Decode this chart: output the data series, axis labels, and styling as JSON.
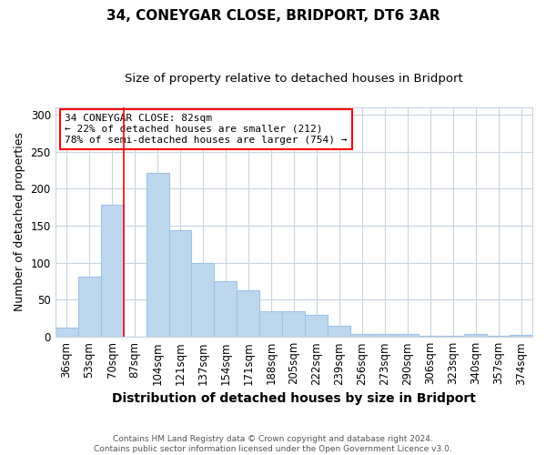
{
  "title1": "34, CONEYGAR CLOSE, BRIDPORT, DT6 3AR",
  "title2": "Size of property relative to detached houses in Bridport",
  "xlabel": "Distribution of detached houses by size in Bridport",
  "ylabel": "Number of detached properties",
  "categories": [
    "36sqm",
    "53sqm",
    "70sqm",
    "87sqm",
    "104sqm",
    "121sqm",
    "137sqm",
    "154sqm",
    "171sqm",
    "188sqm",
    "205sqm",
    "222sqm",
    "239sqm",
    "256sqm",
    "273sqm",
    "290sqm",
    "306sqm",
    "323sqm",
    "340sqm",
    "357sqm",
    "374sqm"
  ],
  "values": [
    12,
    81,
    178,
    0,
    221,
    144,
    100,
    75,
    63,
    35,
    35,
    30,
    15,
    4,
    4,
    4,
    1,
    1,
    4,
    1,
    3
  ],
  "bar_color": "#bdd7ee",
  "bar_edge_color": "#9dc3e6",
  "annotation_text": "34 CONEYGAR CLOSE: 82sqm\n← 22% of detached houses are smaller (212)\n78% of semi-detached houses are larger (754) →",
  "annotation_box_color": "white",
  "annotation_box_edge": "red",
  "red_line_index": 3,
  "ylim": [
    0,
    310
  ],
  "yticks": [
    0,
    50,
    100,
    150,
    200,
    250,
    300
  ],
  "footnote": "Contains HM Land Registry data © Crown copyright and database right 2024.\nContains public sector information licensed under the Open Government Licence v3.0.",
  "bg_color": "#ffffff",
  "plot_bg_color": "#ffffff",
  "grid_color": "#c8d4e0",
  "title1_fontsize": 11,
  "title2_fontsize": 9.5,
  "xlabel_fontsize": 10,
  "ylabel_fontsize": 9,
  "tick_fontsize": 8.5,
  "annot_fontsize": 8
}
